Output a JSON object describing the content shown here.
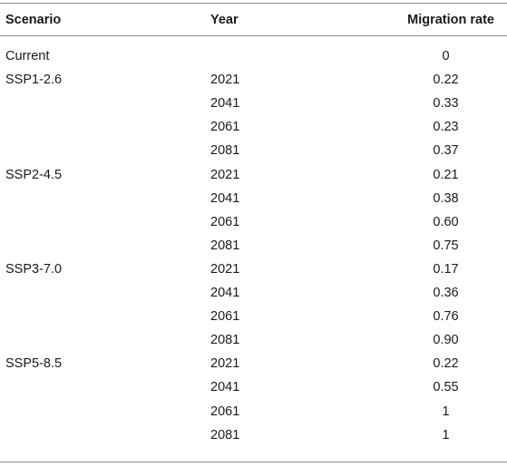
{
  "table": {
    "headers": {
      "scenario": "Scenario",
      "year": "Year",
      "rate": "Migration rate"
    },
    "rows": [
      {
        "scenario": "Current",
        "year": "",
        "rate": "0"
      },
      {
        "scenario": "SSP1-2.6",
        "year": "2021",
        "rate": "0.22"
      },
      {
        "scenario": "",
        "year": "2041",
        "rate": "0.33"
      },
      {
        "scenario": "",
        "year": "2061",
        "rate": "0.23"
      },
      {
        "scenario": "",
        "year": "2081",
        "rate": "0.37"
      },
      {
        "scenario": "SSP2-4.5",
        "year": "2021",
        "rate": "0.21"
      },
      {
        "scenario": "",
        "year": "2041",
        "rate": "0.38"
      },
      {
        "scenario": "",
        "year": "2061",
        "rate": "0.60"
      },
      {
        "scenario": "",
        "year": "2081",
        "rate": "0.75"
      },
      {
        "scenario": "SSP3-7.0",
        "year": "2021",
        "rate": "0.17"
      },
      {
        "scenario": "",
        "year": "2041",
        "rate": "0.36"
      },
      {
        "scenario": "",
        "year": "2061",
        "rate": "0.76"
      },
      {
        "scenario": "",
        "year": "2081",
        "rate": "0.90"
      },
      {
        "scenario": "SSP5-8.5",
        "year": "2021",
        "rate": "0.22"
      },
      {
        "scenario": "",
        "year": "2041",
        "rate": "0.55"
      },
      {
        "scenario": "",
        "year": "2061",
        "rate": "1"
      },
      {
        "scenario": "",
        "year": "2081",
        "rate": "1"
      }
    ]
  }
}
